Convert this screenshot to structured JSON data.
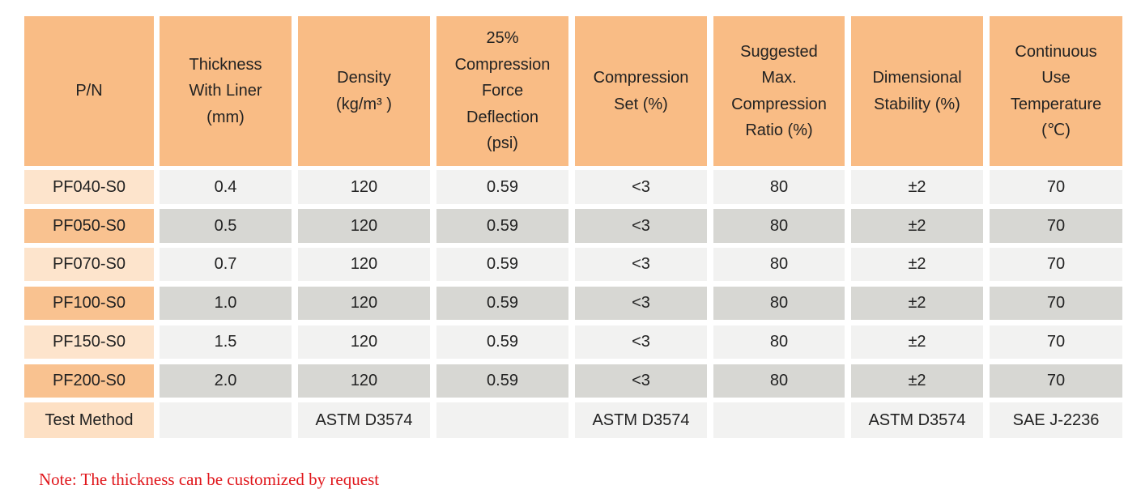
{
  "table": {
    "headers": [
      [
        "P/N"
      ],
      [
        "Thickness",
        "With Liner",
        "(mm)"
      ],
      [
        "Density",
        "(kg/m³ )"
      ],
      [
        "25%",
        "Compression",
        "Force",
        "Deflection",
        "(psi)"
      ],
      [
        "Compression",
        "Set (%)"
      ],
      [
        "Suggested",
        "Max.",
        "Compression",
        "Ratio (%)"
      ],
      [
        "Dimensional",
        "Stability (%)"
      ],
      [
        "Continuous",
        "Use",
        "Temperature",
        "(℃)"
      ]
    ],
    "rows": [
      [
        "PF040-S0",
        "0.4",
        "120",
        "0.59",
        "<3",
        "80",
        "±2",
        "70"
      ],
      [
        "PF050-S0",
        "0.5",
        "120",
        "0.59",
        "<3",
        "80",
        "±2",
        "70"
      ],
      [
        "PF070-S0",
        "0.7",
        "120",
        "0.59",
        "<3",
        "80",
        "±2",
        "70"
      ],
      [
        "PF100-S0",
        "1.0",
        "120",
        "0.59",
        "<3",
        "80",
        "±2",
        "70"
      ],
      [
        "PF150-S0",
        "1.5",
        "120",
        "0.59",
        "<3",
        "80",
        "±2",
        "70"
      ],
      [
        "PF200-S0",
        "2.0",
        "120",
        "0.59",
        "<3",
        "80",
        "±2",
        "70"
      ],
      [
        "Test Method",
        null,
        "ASTM D3574",
        null,
        "ASTM D3574",
        null,
        "ASTM D3574",
        "SAE J-2236"
      ]
    ]
  },
  "note": "Note: The thickness can be customized by request"
}
